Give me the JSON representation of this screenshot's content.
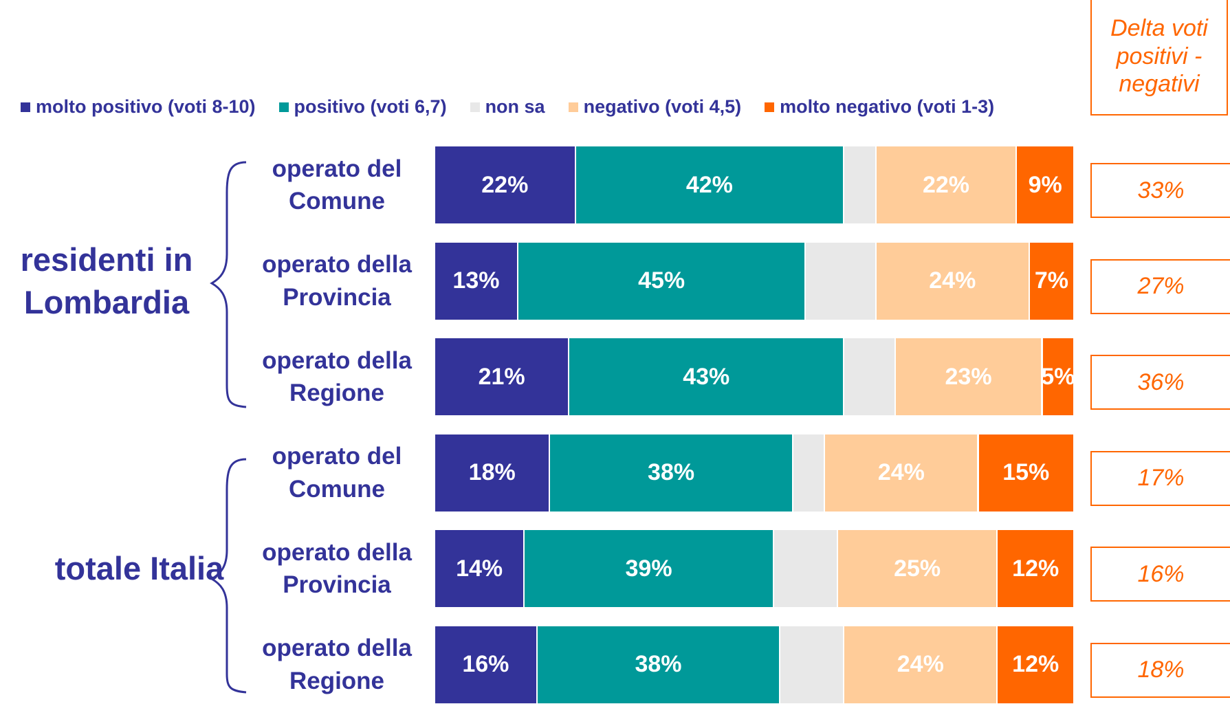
{
  "chart_data": {
    "type": "stacked_bar",
    "orientation": "horizontal",
    "categories": [
      "operato del Comune",
      "operato della Provincia",
      "operato della Regione",
      "operato del Comune",
      "operato della Provincia",
      "operato della Regione"
    ],
    "groups": [
      {
        "label": "residenti in Lombardia",
        "rows": [
          0,
          1,
          2
        ]
      },
      {
        "label": "totale Italia",
        "rows": [
          3,
          4,
          5
        ]
      }
    ],
    "xlim": [
      0,
      100
    ],
    "series": [
      {
        "name": "molto positivo (voti 8-10)",
        "color": "#333399",
        "values": [
          22,
          13,
          21,
          18,
          14,
          16
        ],
        "value_labels": [
          "22%",
          "13%",
          "21%",
          "18%",
          "14%",
          "16%"
        ]
      },
      {
        "name": "positivo (voti 6,7)",
        "color": "#009999",
        "values": [
          42,
          45,
          43,
          38,
          39,
          38
        ],
        "value_labels": [
          "42%",
          "45%",
          "43%",
          "38%",
          "39%",
          "38%"
        ]
      },
      {
        "name": "non sa",
        "color": "#e8e8e8",
        "values": [
          5,
          11,
          8,
          5,
          10,
          10
        ]
      },
      {
        "name": "negativo (voti 4,5)",
        "color": "#ffcc99",
        "values": [
          22,
          24,
          23,
          24,
          25,
          24
        ],
        "value_labels": [
          "22%",
          "24%",
          "23%",
          "24%",
          "25%",
          "24%"
        ]
      },
      {
        "name": "molto negativo (voti 1-3)",
        "color": "#ff6600",
        "values": [
          9,
          7,
          5,
          15,
          12,
          12
        ],
        "value_labels": [
          "9%",
          "7%",
          "5%",
          "15%",
          "12%",
          "12%"
        ]
      }
    ],
    "delta_title": "Delta voti positivi - negativi",
    "delta_values": [
      33,
      27,
      36,
      17,
      16,
      18
    ],
    "delta_labels": [
      "33%",
      "27%",
      "36%",
      "17%",
      "16%",
      "18%"
    ]
  }
}
